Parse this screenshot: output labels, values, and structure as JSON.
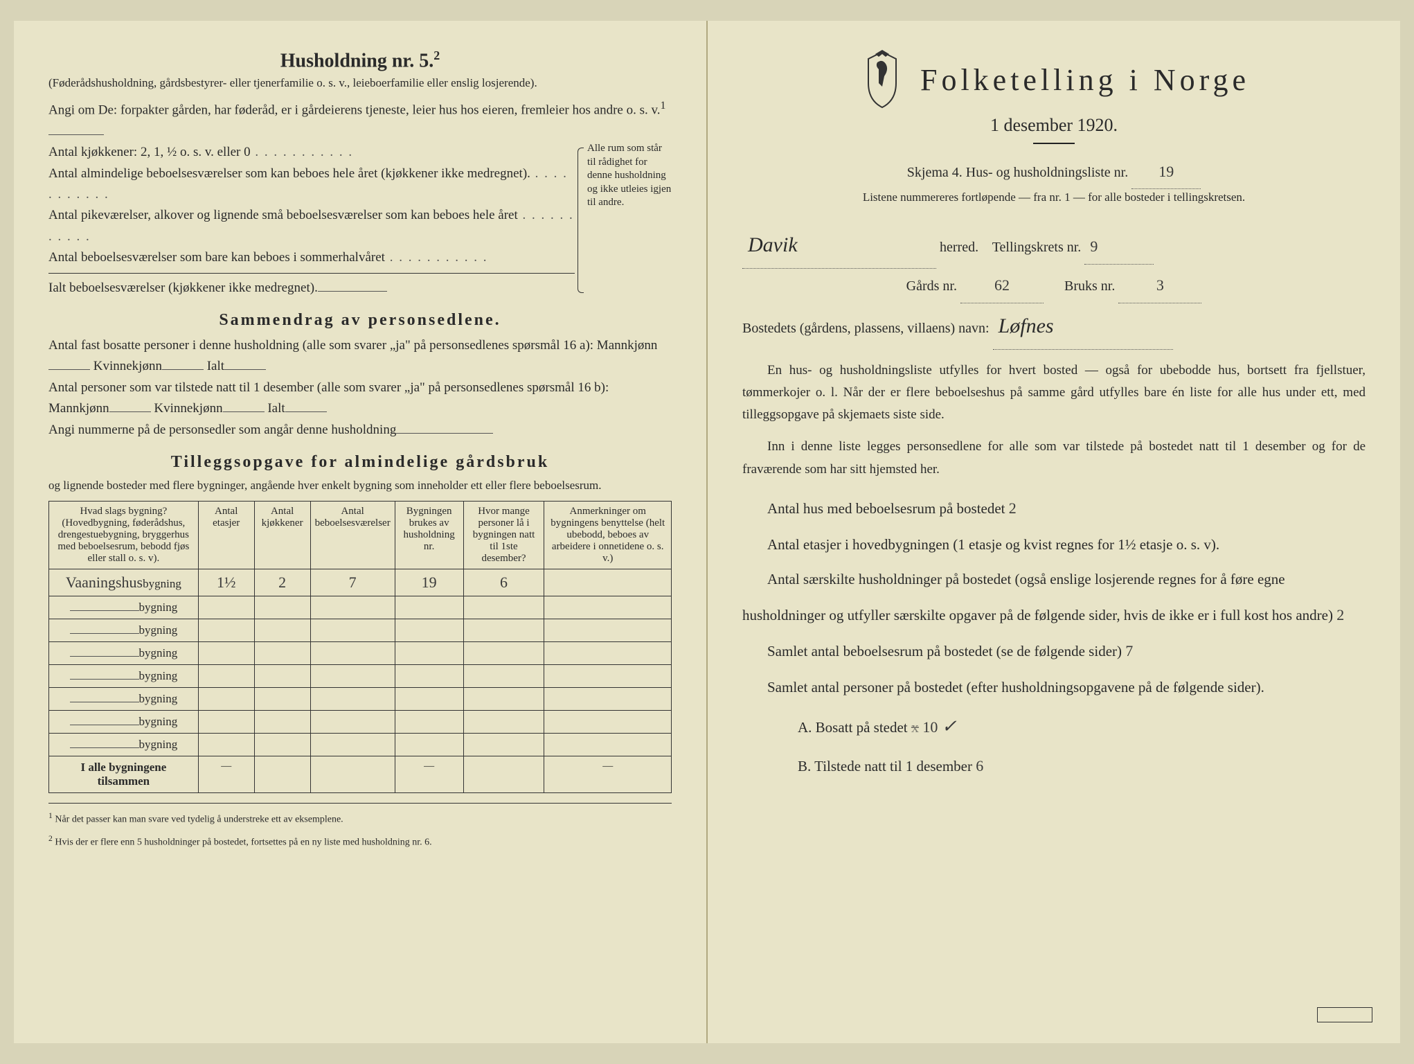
{
  "left": {
    "heading": "Husholdning nr. 5.",
    "heading_sup": "2",
    "sub1": "(Føderådshusholdning, gårdsbestyrer- eller tjenerfamilie o. s. v., leieboerfamilie eller enslig losjerende).",
    "angi_line": "Angi om De: forpakter gården, har føderåd, er i gårdeierens tjeneste, leier hus hos eieren, fremleier hos andre o. s. v.",
    "antal_kjokkener": "Antal kjøkkener: 2, 1, ½ o. s. v. eller 0",
    "brace_items": [
      "Antal almindelige beboelsesværelser som kan beboes hele året (kjøkkener ikke medregnet).",
      "Antal pikeværelser, alkover og lignende små beboelsesværelser som kan beboes hele året",
      "Antal beboelsesværelser som bare kan beboes i sommerhalvåret",
      "Ialt beboelsesværelser (kjøkkener ikke medregnet)."
    ],
    "brace_side": "Alle rum som står til rådighet for denne husholdning og ikke utleies igjen til andre.",
    "sammendrag_title": "Sammendrag av personsedlene.",
    "sammendrag_l1a": "Antal fast bosatte personer i denne husholdning (alle som svarer „ja\" på personsedlenes spørsmål 16 a): Mannkjønn",
    "sammendrag_l1b": "Kvinnekjønn",
    "sammendrag_l1c": "Ialt",
    "sammendrag_l2a": "Antal personer som var tilstede natt til 1 desember (alle som svarer „ja\" på personsedlenes spørsmål 16 b): Mannkjønn",
    "sammendrag_l3": "Angi nummerne på de personsedler som angår denne husholdning",
    "tillegg_title": "Tilleggsopgave for almindelige gårdsbruk",
    "tillegg_sub": "og lignende bosteder med flere bygninger, angående hver enkelt bygning som inneholder ett eller flere beboelsesrum.",
    "table": {
      "headers": [
        "Hvad slags bygning?\n(Hovedbygning, føderådshus, drengestuebygning, bryggerhus med beboelsesrum, bebodd fjøs eller stall o. s. v).",
        "Antal etasjer",
        "Antal kjøkkener",
        "Antal beboelsesværelser",
        "Bygningen brukes av husholdning nr.",
        "Hvor mange personer lå i bygningen natt til 1ste desember?",
        "Anmerkninger om bygningens benyttelse (helt ubebodd, beboes av arbeidere i onnetidene o. s. v.)"
      ],
      "first_row_prefix": "Vaaningshus",
      "bygning_label": "bygning",
      "first_row": [
        "1½",
        "2",
        "7",
        "19",
        "6",
        ""
      ],
      "blank_rows": 7,
      "total_label": "I alle bygningene tilsammen",
      "total_row": [
        "—",
        "",
        "",
        "—",
        "",
        "—"
      ]
    },
    "footnote1_sup": "1",
    "footnote1": "Når det passer kan man svare ved tydelig å understreke ett av eksemplene.",
    "footnote2_sup": "2",
    "footnote2": "Hvis der er flere enn 5 husholdninger på bostedet, fortsettes på en ny liste med husholdning nr. 6."
  },
  "right": {
    "title": "Folketelling i Norge",
    "subtitle": "1 desember 1920.",
    "skjema": "Skjema 4. Hus- og husholdningsliste nr.",
    "skjema_nr": "19",
    "listene": "Listene nummereres fortløpende — fra nr. 1 — for alle bosteder i tellingskretsen.",
    "herred_value": "Davik",
    "herred_label": "herred.",
    "tellingskrets_label": "Tellingskrets nr.",
    "tellingskrets_nr": "9",
    "gards_label": "Gårds nr.",
    "gards_nr": "62",
    "bruks_label": "Bruks nr.",
    "bruks_nr": "3",
    "bosted_label": "Bostedets (gårdens, plassens, villaens) navn:",
    "bosted_value": "Løfnes",
    "para1": "En hus- og husholdningsliste utfylles for hvert bosted — også for ubebodde hus, bortsett fra fjellstuer, tømmerkojer o. l. Når der er flere beboelseshus på samme gård utfylles bare én liste for alle hus under ett, med tilleggsopgave på skjemaets siste side.",
    "para2": "Inn i denne liste legges personsedlene for alle som var tilstede på bostedet natt til 1 desember og for de fraværende som har sitt hjemsted her.",
    "line_antal_hus": "Antal hus med beboelsesrum på bostedet",
    "antal_hus_val": "2",
    "line_etasjer": "Antal etasjer i hovedbygningen (1 etasje og kvist regnes for 1½ etasje o. s. v).",
    "line_saerskilte": "Antal særskilte husholdninger på bostedet (også enslige losjerende regnes for å føre egne husholdninger og utfyller særskilte opgaver på de følgende sider, hvis de ikke er i full kost hos andre)",
    "saerskilte_val": "2",
    "line_samlet_rum": "Samlet antal beboelsesrum på bostedet (se de følgende sider)",
    "samlet_rum_val": "7",
    "line_samlet_pers": "Samlet antal personer på bostedet (efter husholdningsopgavene på de følgende sider).",
    "line_A": "A. Bosatt på stedet",
    "A_val": "10",
    "A_mark": "✓",
    "line_B": "B. Tilstede natt til 1 desember",
    "B_val": "6"
  }
}
